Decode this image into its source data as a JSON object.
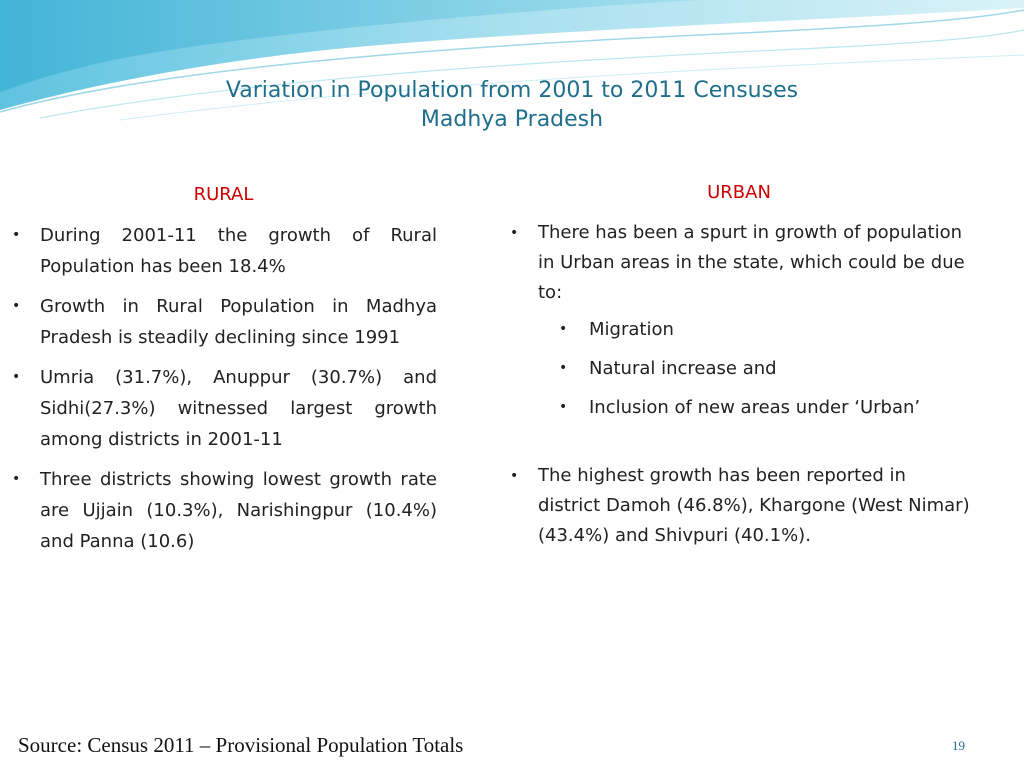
{
  "slide": {
    "title_line1": "Variation in Population from 2001 to 2011 Censuses",
    "title_line2": "Madhya Pradesh",
    "accent_color": "#1f6e8c",
    "heading_color": "#cc0000"
  },
  "rural": {
    "heading": "RURAL",
    "bullets": [
      "During 2001-11 the growth of Rural Population has been 18.4%",
      "Growth in Rural Population in Madhya Pradesh is steadily declining since 1991",
      "Umria (31.7%), Anuppur (30.7%) and Sidhi(27.3%) witnessed largest growth among districts in 2001-11",
      "Three districts showing lowest growth rate are Ujjain (10.3%), Narishingpur (10.4%) and Panna (10.6)"
    ]
  },
  "urban": {
    "heading": "URBAN",
    "bullet1": "There has been a spurt in growth of population in Urban areas in the state, which could be due to:",
    "sub_bullets": [
      "Migration",
      "Natural increase and",
      "Inclusion of new areas under ‘Urban’"
    ],
    "bullet2": "The highest growth has been reported in district Damoh (46.8%), Khargone (West Nimar) (43.4%) and Shivpuri (40.1%)."
  },
  "footer": {
    "source": "Source: Census 2011 – Provisional Population Totals",
    "page_number": "19"
  }
}
